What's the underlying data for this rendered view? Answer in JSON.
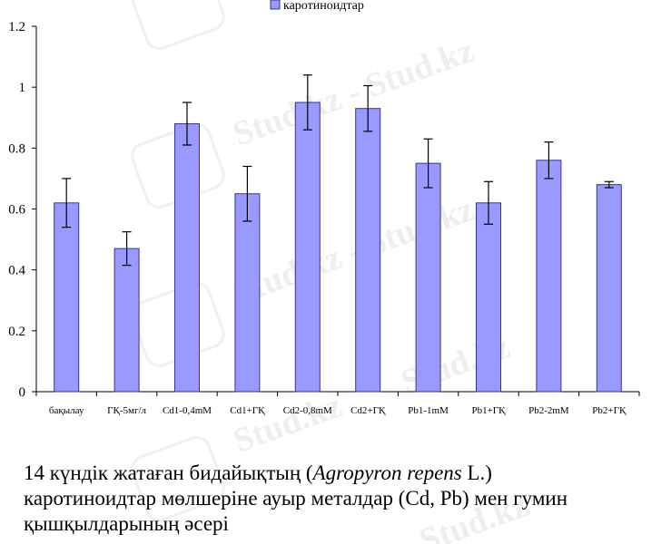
{
  "watermark": {
    "text": "Stud.kz",
    "text_full": "Stud.kz - Stud.kz"
  },
  "chart_data": {
    "type": "bar",
    "legend": {
      "label": "каротиноидтар",
      "placement": "top-center"
    },
    "categories": [
      "бақылау",
      "ГҚ-5мг/л",
      "Cd1-0,4mM",
      "Cd1+ГҚ",
      "Cd2-0,8mM",
      "Cd2+ГҚ",
      "Pb1-1mM",
      "Pb1+ГҚ",
      "Pb2-2mM",
      "Pb2+ГҚ"
    ],
    "series": [
      {
        "name": "каротиноидтар",
        "values": [
          0.62,
          0.47,
          0.88,
          0.65,
          0.95,
          0.93,
          0.75,
          0.62,
          0.76,
          0.68
        ],
        "errors": [
          0.08,
          0.055,
          0.07,
          0.09,
          0.09,
          0.075,
          0.08,
          0.07,
          0.06,
          0.01
        ]
      }
    ],
    "ylim": [
      0,
      1.2
    ],
    "yticks": [
      "0",
      "0.2",
      "0.4",
      "0.6",
      "0.8",
      "1",
      "1.2"
    ],
    "ytick_values": [
      0,
      0.2,
      0.4,
      0.6,
      0.8,
      1.0,
      1.2
    ],
    "grid": false,
    "colors": {
      "bar_fill": "#9999ff",
      "bar_stroke": "#333399"
    }
  },
  "caption": {
    "line1_prefix": "14 күндік жатаған бидайықтың (",
    "line1_italic": "Agropyron repens",
    "line1_suffix": " L.)",
    "line2": "каротиноидтар мөлшеріне ауыр металдар (Cd, Pb) мен гумин",
    "line3": "қышқылдарының әсері"
  }
}
